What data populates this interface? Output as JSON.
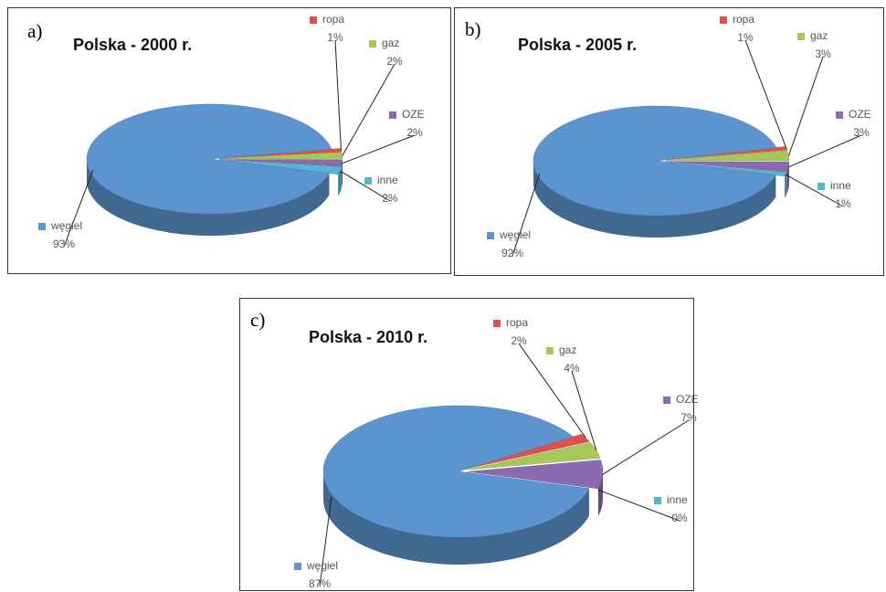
{
  "chart_data": [
    {
      "type": "pie",
      "label": "a)",
      "title": "Polska - 2000 r.",
      "categories": [
        "ropa",
        "gaz",
        "OZE",
        "inne",
        "węgiel"
      ],
      "values": [
        1,
        2,
        2,
        2,
        93
      ],
      "value_labels": [
        "1%",
        "2%",
        "2%",
        "2%",
        "93%"
      ],
      "colors": [
        "#e0504a",
        "#a6c75a",
        "#8a6bb0",
        "#4fb8d3",
        "#5b94cf"
      ]
    },
    {
      "type": "pie",
      "label": "b)",
      "title": "Polska - 2005 r.",
      "categories": [
        "ropa",
        "gaz",
        "OZE",
        "inne",
        "węgiel"
      ],
      "values": [
        1,
        3,
        3,
        1,
        92
      ],
      "value_labels": [
        "1%",
        "3%",
        "3%",
        "1%",
        "92%"
      ],
      "colors": [
        "#e0504a",
        "#a6c75a",
        "#8a6bb0",
        "#4fb8d3",
        "#5b94cf"
      ]
    },
    {
      "type": "pie",
      "label": "c)",
      "title": "Polska - 2010 r.",
      "categories": [
        "ropa",
        "gaz",
        "OZE",
        "inne",
        "węgiel"
      ],
      "values": [
        2,
        4,
        7,
        0,
        87
      ],
      "value_labels": [
        "2%",
        "4%",
        "7%",
        "0%",
        "87%"
      ],
      "colors": [
        "#e0504a",
        "#a6c75a",
        "#8a6bb0",
        "#4fb8d3",
        "#5b94cf"
      ]
    }
  ]
}
